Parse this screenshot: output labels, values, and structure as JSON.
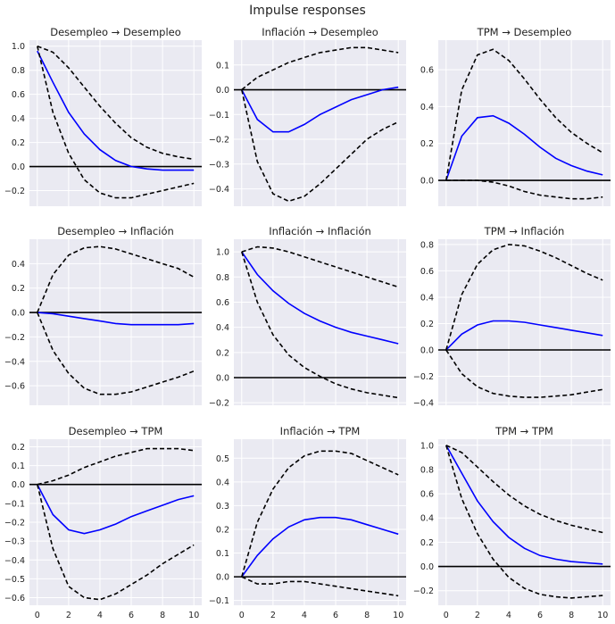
{
  "figure": {
    "title": "Impulse responses",
    "colors": {
      "background": "#ffffff",
      "panel_background": "#eaeaf2",
      "grid": "#ffffff",
      "irf_line": "#0000ff",
      "band_line": "#000000",
      "zero_line": "#000000"
    }
  },
  "chart_data": [
    {
      "type": "line",
      "title": "Desempleo → Desempleo",
      "x": [
        0,
        1,
        2,
        3,
        4,
        5,
        6,
        7,
        8,
        9,
        10
      ],
      "xlim": [
        -0.5,
        10.5
      ],
      "xticks": [
        0,
        2,
        4,
        6,
        8,
        10
      ],
      "ylim": [
        -0.33,
        1.05
      ],
      "yticks": [
        -0.2,
        0.0,
        0.2,
        0.4,
        0.6,
        0.8,
        1.0
      ],
      "ytick_labels": [
        "−0.2",
        "0.0",
        "0.2",
        "0.4",
        "0.6",
        "0.8",
        "1.0"
      ],
      "series": [
        {
          "role": "irf",
          "values": [
            0.96,
            0.7,
            0.45,
            0.27,
            0.14,
            0.05,
            0.0,
            -0.02,
            -0.03,
            -0.03,
            -0.03
          ]
        },
        {
          "role": "upper",
          "values": [
            1.0,
            0.95,
            0.82,
            0.66,
            0.5,
            0.36,
            0.24,
            0.16,
            0.11,
            0.08,
            0.06
          ]
        },
        {
          "role": "lower",
          "values": [
            1.0,
            0.45,
            0.11,
            -0.11,
            -0.22,
            -0.26,
            -0.26,
            -0.23,
            -0.2,
            -0.17,
            -0.14
          ]
        }
      ]
    },
    {
      "type": "line",
      "title": "Inflación → Desempleo",
      "x": [
        0,
        1,
        2,
        3,
        4,
        5,
        6,
        7,
        8,
        9,
        10
      ],
      "xlim": [
        -0.5,
        10.5
      ],
      "xticks": [
        0,
        2,
        4,
        6,
        8,
        10
      ],
      "ylim": [
        -0.47,
        0.2
      ],
      "yticks": [
        -0.4,
        -0.3,
        -0.2,
        -0.1,
        0.0,
        0.1
      ],
      "ytick_labels": [
        "−0.4",
        "−0.3",
        "−0.2",
        "−0.1",
        "0.0",
        "0.1"
      ],
      "series": [
        {
          "role": "irf",
          "values": [
            0.0,
            -0.12,
            -0.17,
            -0.17,
            -0.14,
            -0.1,
            -0.07,
            -0.04,
            -0.02,
            0.0,
            0.01
          ]
        },
        {
          "role": "upper",
          "values": [
            0.0,
            0.05,
            0.08,
            0.11,
            0.13,
            0.15,
            0.16,
            0.17,
            0.17,
            0.16,
            0.15
          ]
        },
        {
          "role": "lower",
          "values": [
            0.0,
            -0.29,
            -0.42,
            -0.45,
            -0.43,
            -0.38,
            -0.32,
            -0.26,
            -0.2,
            -0.16,
            -0.13
          ]
        }
      ]
    },
    {
      "type": "line",
      "title": "TPM → Desempleo",
      "x": [
        0,
        1,
        2,
        3,
        4,
        5,
        6,
        7,
        8,
        9,
        10
      ],
      "xlim": [
        -0.5,
        10.5
      ],
      "xticks": [
        0,
        2,
        4,
        6,
        8,
        10
      ],
      "ylim": [
        -0.14,
        0.76
      ],
      "yticks": [
        0.0,
        0.2,
        0.4,
        0.6
      ],
      "ytick_labels": [
        "0.0",
        "0.2",
        "0.4",
        "0.6"
      ],
      "series": [
        {
          "role": "irf",
          "values": [
            0.0,
            0.24,
            0.34,
            0.35,
            0.31,
            0.25,
            0.18,
            0.12,
            0.08,
            0.05,
            0.03
          ]
        },
        {
          "role": "upper",
          "values": [
            0.0,
            0.49,
            0.68,
            0.71,
            0.65,
            0.55,
            0.44,
            0.34,
            0.26,
            0.2,
            0.15
          ]
        },
        {
          "role": "lower",
          "values": [
            0.0,
            0.0,
            0.0,
            -0.01,
            -0.03,
            -0.06,
            -0.08,
            -0.09,
            -0.1,
            -0.1,
            -0.09
          ]
        }
      ]
    },
    {
      "type": "line",
      "title": "Desempleo → Inflación",
      "x": [
        0,
        1,
        2,
        3,
        4,
        5,
        6,
        7,
        8,
        9,
        10
      ],
      "xlim": [
        -0.5,
        10.5
      ],
      "xticks": [
        0,
        2,
        4,
        6,
        8,
        10
      ],
      "ylim": [
        -0.76,
        0.6
      ],
      "yticks": [
        -0.6,
        -0.4,
        -0.2,
        0.0,
        0.2,
        0.4
      ],
      "ytick_labels": [
        "−0.6",
        "−0.4",
        "−0.2",
        "0.0",
        "0.2",
        "0.4"
      ],
      "series": [
        {
          "role": "irf",
          "values": [
            0.0,
            -0.01,
            -0.03,
            -0.05,
            -0.07,
            -0.09,
            -0.1,
            -0.1,
            -0.1,
            -0.1,
            -0.09
          ]
        },
        {
          "role": "upper",
          "values": [
            0.0,
            0.31,
            0.47,
            0.53,
            0.54,
            0.52,
            0.48,
            0.44,
            0.4,
            0.36,
            0.29
          ]
        },
        {
          "role": "lower",
          "values": [
            0.0,
            -0.31,
            -0.5,
            -0.62,
            -0.67,
            -0.67,
            -0.65,
            -0.61,
            -0.57,
            -0.53,
            -0.48
          ]
        }
      ]
    },
    {
      "type": "line",
      "title": "Inflación → Inflación",
      "x": [
        0,
        1,
        2,
        3,
        4,
        5,
        6,
        7,
        8,
        9,
        10
      ],
      "xlim": [
        -0.5,
        10.5
      ],
      "xticks": [
        0,
        2,
        4,
        6,
        8,
        10
      ],
      "ylim": [
        -0.22,
        1.1
      ],
      "yticks": [
        -0.2,
        0.0,
        0.2,
        0.4,
        0.6,
        0.8,
        1.0
      ],
      "ytick_labels": [
        "−0.2",
        "0.0",
        "0.2",
        "0.4",
        "0.6",
        "0.8",
        "1.0"
      ],
      "series": [
        {
          "role": "irf",
          "values": [
            1.0,
            0.82,
            0.69,
            0.59,
            0.51,
            0.45,
            0.4,
            0.36,
            0.33,
            0.3,
            0.27
          ]
        },
        {
          "role": "upper",
          "values": [
            1.0,
            1.04,
            1.03,
            1.0,
            0.96,
            0.92,
            0.88,
            0.84,
            0.8,
            0.76,
            0.72
          ]
        },
        {
          "role": "lower",
          "values": [
            1.0,
            0.6,
            0.34,
            0.18,
            0.08,
            0.01,
            -0.05,
            -0.09,
            -0.12,
            -0.14,
            -0.16
          ]
        }
      ]
    },
    {
      "type": "line",
      "title": "TPM → Inflación",
      "x": [
        0,
        1,
        2,
        3,
        4,
        5,
        6,
        7,
        8,
        9,
        10
      ],
      "xlim": [
        -0.5,
        10.5
      ],
      "xticks": [
        0,
        2,
        4,
        6,
        8,
        10
      ],
      "ylim": [
        -0.42,
        0.84
      ],
      "yticks": [
        -0.4,
        -0.2,
        0.0,
        0.2,
        0.4,
        0.6,
        0.8
      ],
      "ytick_labels": [
        "−0.4",
        "−0.2",
        "0.0",
        "0.2",
        "0.4",
        "0.6",
        "0.8"
      ],
      "series": [
        {
          "role": "irf",
          "values": [
            0.0,
            0.12,
            0.19,
            0.22,
            0.22,
            0.21,
            0.19,
            0.17,
            0.15,
            0.13,
            0.11
          ]
        },
        {
          "role": "upper",
          "values": [
            0.0,
            0.42,
            0.65,
            0.76,
            0.8,
            0.79,
            0.75,
            0.7,
            0.64,
            0.58,
            0.53
          ]
        },
        {
          "role": "lower",
          "values": [
            0.0,
            -0.18,
            -0.28,
            -0.33,
            -0.35,
            -0.36,
            -0.36,
            -0.35,
            -0.34,
            -0.32,
            -0.3
          ]
        }
      ]
    },
    {
      "type": "line",
      "title": "Desempleo → TPM",
      "x": [
        0,
        1,
        2,
        3,
        4,
        5,
        6,
        7,
        8,
        9,
        10
      ],
      "xlim": [
        -0.5,
        10.5
      ],
      "xticks": [
        0,
        2,
        4,
        6,
        8,
        10
      ],
      "ylim": [
        -0.64,
        0.24
      ],
      "yticks": [
        -0.6,
        -0.5,
        -0.4,
        -0.3,
        -0.2,
        -0.1,
        0.0,
        0.1,
        0.2
      ],
      "ytick_labels": [
        "−0.6",
        "−0.5",
        "−0.4",
        "−0.3",
        "−0.2",
        "−0.1",
        "0.0",
        "0.1",
        "0.2"
      ],
      "series": [
        {
          "role": "irf",
          "values": [
            0.0,
            -0.16,
            -0.24,
            -0.26,
            -0.24,
            -0.21,
            -0.17,
            -0.14,
            -0.11,
            -0.08,
            -0.06
          ]
        },
        {
          "role": "upper",
          "values": [
            0.0,
            0.02,
            0.05,
            0.09,
            0.12,
            0.15,
            0.17,
            0.19,
            0.19,
            0.19,
            0.18
          ]
        },
        {
          "role": "lower",
          "values": [
            0.0,
            -0.34,
            -0.54,
            -0.6,
            -0.61,
            -0.58,
            -0.53,
            -0.48,
            -0.42,
            -0.37,
            -0.32
          ]
        }
      ]
    },
    {
      "type": "line",
      "title": "Inflación → TPM",
      "x": [
        0,
        1,
        2,
        3,
        4,
        5,
        6,
        7,
        8,
        9,
        10
      ],
      "xlim": [
        -0.5,
        10.5
      ],
      "xticks": [
        0,
        2,
        4,
        6,
        8,
        10
      ],
      "ylim": [
        -0.12,
        0.58
      ],
      "yticks": [
        -0.1,
        0.0,
        0.1,
        0.2,
        0.3,
        0.4,
        0.5
      ],
      "ytick_labels": [
        "−0.1",
        "0.0",
        "0.1",
        "0.2",
        "0.3",
        "0.4",
        "0.5"
      ],
      "series": [
        {
          "role": "irf",
          "values": [
            0.0,
            0.09,
            0.16,
            0.21,
            0.24,
            0.25,
            0.25,
            0.24,
            0.22,
            0.2,
            0.18
          ]
        },
        {
          "role": "upper",
          "values": [
            0.0,
            0.23,
            0.37,
            0.46,
            0.51,
            0.53,
            0.53,
            0.52,
            0.49,
            0.46,
            0.43
          ]
        },
        {
          "role": "lower",
          "values": [
            0.0,
            -0.03,
            -0.03,
            -0.02,
            -0.02,
            -0.03,
            -0.04,
            -0.05,
            -0.06,
            -0.07,
            -0.08
          ]
        }
      ]
    },
    {
      "type": "line",
      "title": "TPM → TPM",
      "x": [
        0,
        1,
        2,
        3,
        4,
        5,
        6,
        7,
        8,
        9,
        10
      ],
      "xlim": [
        -0.5,
        10.5
      ],
      "xticks": [
        0,
        2,
        4,
        6,
        8,
        10
      ],
      "ylim": [
        -0.32,
        1.05
      ],
      "yticks": [
        -0.2,
        0.0,
        0.2,
        0.4,
        0.6,
        0.8,
        1.0
      ],
      "ytick_labels": [
        "−0.2",
        "0.0",
        "0.2",
        "0.4",
        "0.6",
        "0.8",
        "1.0"
      ],
      "series": [
        {
          "role": "irf",
          "values": [
            1.0,
            0.77,
            0.54,
            0.37,
            0.24,
            0.15,
            0.09,
            0.06,
            0.04,
            0.03,
            0.02
          ]
        },
        {
          "role": "upper",
          "values": [
            1.0,
            0.94,
            0.82,
            0.7,
            0.59,
            0.5,
            0.43,
            0.38,
            0.34,
            0.31,
            0.28
          ]
        },
        {
          "role": "lower",
          "values": [
            1.0,
            0.56,
            0.27,
            0.06,
            -0.09,
            -0.18,
            -0.23,
            -0.25,
            -0.26,
            -0.25,
            -0.24
          ]
        }
      ]
    }
  ]
}
